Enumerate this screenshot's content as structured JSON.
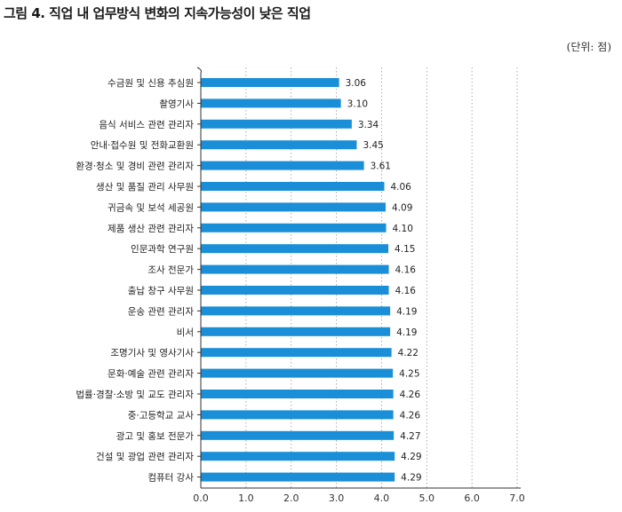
{
  "title": "그림 4. 직업 내 업무방식 변화의 지속가능성이 낮은 직업",
  "unit": "(단위: 점)",
  "chart_data": {
    "type": "bar",
    "orientation": "horizontal",
    "categories": [
      "수금원 및 신용 추심원",
      "촬영기사",
      "음식 서비스 관련 관리자",
      "안내·접수원 및 전화교환원",
      "환경·청소 및 경비 관련 관리자",
      "생산 및 품질 관리 사무원",
      "귀금속 및 보석 세공원",
      "제품 생산 관련 관리자",
      "인문과학 연구원",
      "조사 전문가",
      "출납 창구 사무원",
      "운송 관련 관리자",
      "비서",
      "조명기사 및 영사기사",
      "문화·예술 관련 관리자",
      "법률·경찰·소방 및 교도 관리자",
      "중·고등학교 교사",
      "광고 및 홍보 전문가",
      "건설 및 광업 관련 관리자",
      "컴퓨터 강사"
    ],
    "values": [
      3.06,
      3.1,
      3.34,
      3.45,
      3.61,
      4.06,
      4.09,
      4.1,
      4.15,
      4.16,
      4.16,
      4.19,
      4.19,
      4.22,
      4.25,
      4.26,
      4.26,
      4.27,
      4.29,
      4.29
    ],
    "value_labels": [
      "3.06",
      "3.10",
      "3.34",
      "3.45",
      "3.61",
      "4.06",
      "4.09",
      "4.10",
      "4.15",
      "4.16",
      "4.16",
      "4.19",
      "4.19",
      "4.22",
      "4.25",
      "4.26",
      "4.26",
      "4.27",
      "4.29",
      "4.29"
    ],
    "xlim": [
      0,
      7
    ],
    "xticks": [
      "0.0",
      "1.0",
      "2.0",
      "3.0",
      "4.0",
      "5.0",
      "6.0",
      "7.0"
    ],
    "grid": "vertical dotted",
    "bar_color": "#1a8fd8"
  }
}
